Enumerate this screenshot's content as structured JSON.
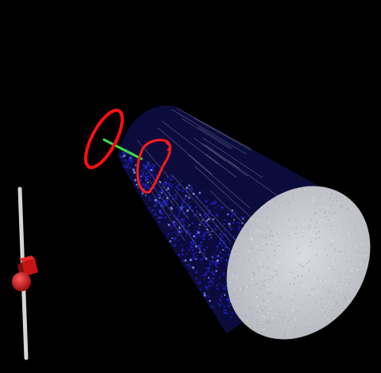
{
  "scene": {
    "background_color": "#000000",
    "point_cloud_color": "#1a1aa8",
    "cap_color": "#c9cbd0",
    "ring_color": "#ff1414",
    "connector_color": "#3ddc3d",
    "pole_color": "#d6d6d6",
    "marker_color": "#c81414",
    "objects": [
      "cylinder-point-cloud",
      "cylinder-end-cap",
      "red-ring-target",
      "red-ring-surface-contact",
      "green-connector-line",
      "vertical-pole",
      "red-box-marker",
      "red-sphere-marker"
    ]
  }
}
